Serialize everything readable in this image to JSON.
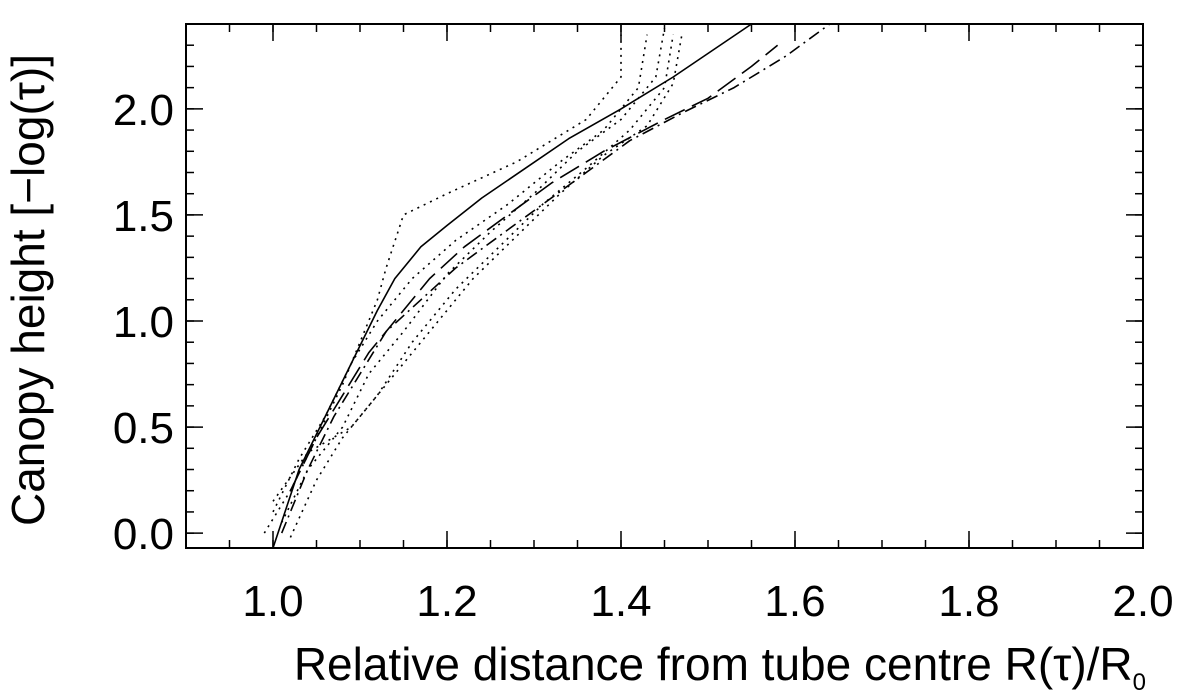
{
  "chart_data": {
    "type": "line",
    "xlabel": "Relative distance from tube centre R(τ)/R",
    "xlabel_subscript": "0",
    "ylabel": "Canopy height [−log(τ)]",
    "xlim": [
      0.9,
      2.0
    ],
    "ylim": [
      -0.07,
      2.4
    ],
    "x_ticks": [
      1.0,
      1.2,
      1.4,
      1.6,
      1.8,
      2.0
    ],
    "x_tick_labels": [
      "1.0",
      "1.2",
      "1.4",
      "1.6",
      "1.8",
      "2.0"
    ],
    "x_minor_step": 0.05,
    "y_ticks": [
      0.0,
      0.5,
      1.0,
      1.5,
      2.0
    ],
    "y_tick_labels": [
      "0.0",
      "0.5",
      "1.0",
      "1.5",
      "2.0"
    ],
    "y_minor_step": 0.1,
    "grid": false,
    "legend": "none",
    "series": [
      {
        "style": "solid",
        "x": [
          1.0,
          1.03,
          1.06,
          1.09,
          1.12,
          1.14,
          1.17,
          1.2,
          1.24,
          1.29,
          1.34,
          1.4,
          1.46,
          1.55
        ],
        "y": [
          -0.07,
          0.3,
          0.55,
          0.8,
          1.05,
          1.2,
          1.35,
          1.45,
          1.58,
          1.72,
          1.86,
          2.0,
          2.15,
          2.4
        ]
      },
      {
        "style": "long-dash",
        "x": [
          1.02,
          1.05,
          1.08,
          1.11,
          1.14,
          1.18,
          1.22,
          1.27,
          1.32,
          1.38,
          1.45,
          1.5,
          1.55,
          1.58
        ],
        "y": [
          0.2,
          0.45,
          0.65,
          0.85,
          1.0,
          1.2,
          1.35,
          1.5,
          1.65,
          1.8,
          1.95,
          2.05,
          2.2,
          2.3
        ]
      },
      {
        "style": "dash-dot",
        "x": [
          1.01,
          1.04,
          1.07,
          1.1,
          1.13,
          1.17,
          1.21,
          1.26,
          1.31,
          1.36,
          1.41,
          1.47,
          1.53,
          1.59,
          1.64
        ],
        "y": [
          0.0,
          0.3,
          0.55,
          0.75,
          0.95,
          1.1,
          1.25,
          1.4,
          1.55,
          1.7,
          1.85,
          1.98,
          2.1,
          2.25,
          2.4
        ]
      },
      {
        "style": "dotted",
        "x": [
          0.99,
          1.02,
          1.05,
          1.08,
          1.1,
          1.12,
          1.13,
          1.15,
          1.2,
          1.28,
          1.36,
          1.4,
          1.4
        ],
        "y": [
          0.0,
          0.2,
          0.45,
          0.7,
          0.9,
          1.1,
          1.25,
          1.5,
          1.6,
          1.75,
          1.95,
          2.15,
          2.35
        ]
      },
      {
        "style": "dotted",
        "x": [
          1.0,
          1.03,
          1.06,
          1.09,
          1.12,
          1.16,
          1.21,
          1.27,
          1.33,
          1.38,
          1.42,
          1.43
        ],
        "y": [
          0.1,
          0.35,
          0.55,
          0.8,
          1.0,
          1.2,
          1.38,
          1.55,
          1.75,
          1.9,
          2.1,
          2.35
        ]
      },
      {
        "style": "dotted",
        "x": [
          1.01,
          1.04,
          1.08,
          1.11,
          1.15,
          1.2,
          1.25,
          1.3,
          1.35,
          1.4,
          1.44,
          1.45
        ],
        "y": [
          0.05,
          0.3,
          0.5,
          0.75,
          0.95,
          1.22,
          1.42,
          1.6,
          1.8,
          1.95,
          2.15,
          2.38
        ]
      },
      {
        "style": "dotted",
        "x": [
          1.02,
          1.05,
          1.08,
          1.12,
          1.16,
          1.21,
          1.26,
          1.31,
          1.36,
          1.41,
          1.45,
          1.46
        ],
        "y": [
          -0.02,
          0.25,
          0.45,
          0.65,
          0.9,
          1.15,
          1.35,
          1.55,
          1.72,
          1.9,
          2.1,
          2.35
        ]
      },
      {
        "style": "dotted",
        "x": [
          1.0,
          1.04,
          1.09,
          1.13,
          1.18,
          1.23,
          1.28,
          1.33,
          1.38,
          1.43,
          1.46,
          1.47
        ],
        "y": [
          0.15,
          0.38,
          0.5,
          0.7,
          0.95,
          1.2,
          1.4,
          1.6,
          1.78,
          1.92,
          2.12,
          2.35
        ]
      }
    ]
  }
}
